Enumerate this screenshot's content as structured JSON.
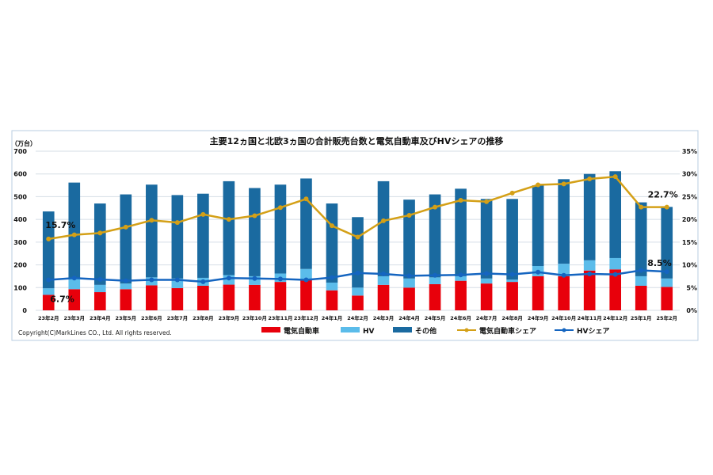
{
  "chart_data": {
    "type": "bar",
    "title": "主要12ヵ国と北欧3ヵ国の合計販売台数と電気自動車及びHVシェアの推移",
    "ylabel": "（万台）",
    "ylim": [
      0,
      700
    ],
    "y2lim": [
      0,
      35
    ],
    "yticks": [
      "0",
      "100",
      "200",
      "300",
      "400",
      "500",
      "600",
      "700"
    ],
    "y2ticks": [
      "0%",
      "5%",
      "10%",
      "15%",
      "20%",
      "25%",
      "30%",
      "35%"
    ],
    "grid": true,
    "legend_position": "bottom",
    "categories": [
      "23年2月",
      "23年3月",
      "23年4月",
      "23年5月",
      "23年6月",
      "23年7月",
      "23年8月",
      "23年9月",
      "23年10月",
      "23年11月",
      "23年12月",
      "24年1月",
      "24年2月",
      "24年3月",
      "24年4月",
      "24年5月",
      "24年6月",
      "24年7月",
      "24年8月",
      "24年9月",
      "24年10月",
      "24年11月",
      "24年12月",
      "25年1月",
      "25年2月"
    ],
    "series": [
      {
        "name": "電気自動車",
        "kind": "stacked-bar",
        "color": "#e8000b",
        "values": [
          68,
          93,
          80,
          93,
          110,
          98,
          108,
          113,
          112,
          125,
          135,
          88,
          65,
          112,
          100,
          115,
          130,
          118,
          125,
          150,
          150,
          175,
          180,
          108,
          103
        ]
      },
      {
        "name": "HV",
        "kind": "stacked-bar",
        "color": "#5bbcea",
        "values": [
          29,
          50,
          32,
          25,
          35,
          42,
          35,
          42,
          38,
          37,
          47,
          34,
          35,
          38,
          40,
          30,
          20,
          22,
          10,
          45,
          55,
          45,
          50,
          42,
          37
        ]
      },
      {
        "name": "その他",
        "kind": "stacked-bar",
        "color": "#1a6aa0",
        "values": [
          338,
          419,
          358,
          392,
          408,
          367,
          370,
          413,
          388,
          391,
          398,
          348,
          310,
          418,
          347,
          365,
          385,
          350,
          355,
          355,
          372,
          380,
          382,
          325,
          315
        ]
      },
      {
        "name": "電気自動車シェア",
        "kind": "line",
        "axis": "right",
        "color": "#d4a017",
        "values": [
          15.7,
          16.6,
          17.0,
          18.3,
          19.8,
          19.3,
          21.1,
          20.0,
          20.8,
          22.6,
          24.5,
          18.6,
          16.1,
          19.7,
          20.9,
          22.7,
          24.2,
          23.9,
          25.8,
          27.6,
          27.8,
          28.9,
          29.4,
          22.7,
          22.7
        ]
      },
      {
        "name": "HVシェア",
        "kind": "line",
        "axis": "right",
        "color": "#1565c0",
        "values": [
          6.7,
          7.1,
          6.8,
          6.5,
          6.7,
          6.7,
          6.3,
          7.1,
          7.0,
          6.9,
          6.7,
          7.2,
          8.2,
          8.0,
          7.6,
          7.7,
          7.8,
          8.1,
          7.9,
          8.4,
          7.7,
          8.0,
          7.9,
          8.8,
          8.5
        ]
      }
    ],
    "annotations": [
      "15.7%",
      "6.7%",
      "22.7%",
      "8.5%"
    ],
    "copyright": "Copyright(C)MarkLines CO., Ltd. All rights reserved."
  }
}
